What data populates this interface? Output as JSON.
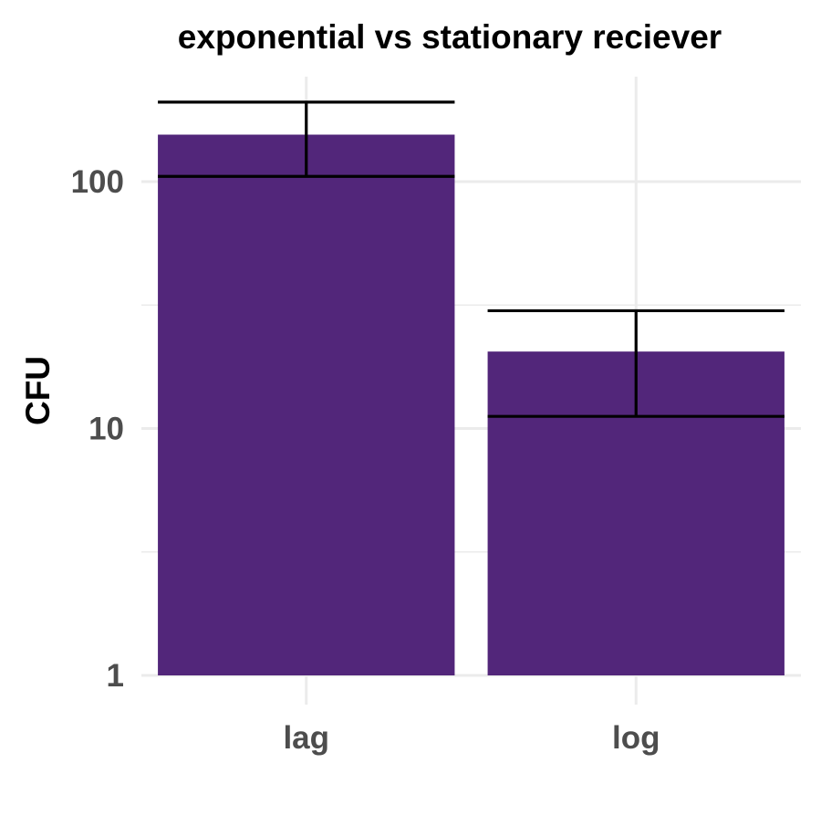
{
  "chart_data": {
    "type": "bar",
    "title": "exponential vs stationary reciever",
    "xlabel": "",
    "ylabel": "CFU",
    "y_scale": "log10",
    "ylim": [
      1,
      250
    ],
    "y_ticks": [
      1,
      10,
      100
    ],
    "y_tick_labels": [
      "1",
      "10",
      "100"
    ],
    "categories": [
      "lag",
      "log"
    ],
    "values": [
      155,
      20.5
    ],
    "error_low": [
      105,
      11.2
    ],
    "error_high": [
      210,
      30
    ],
    "grid": true,
    "legend": "none",
    "bar_color": "#52267a",
    "error_bar_color": "#000000",
    "grid_color": "#ebebeb",
    "tick_label_color": "#4d4d4d"
  }
}
